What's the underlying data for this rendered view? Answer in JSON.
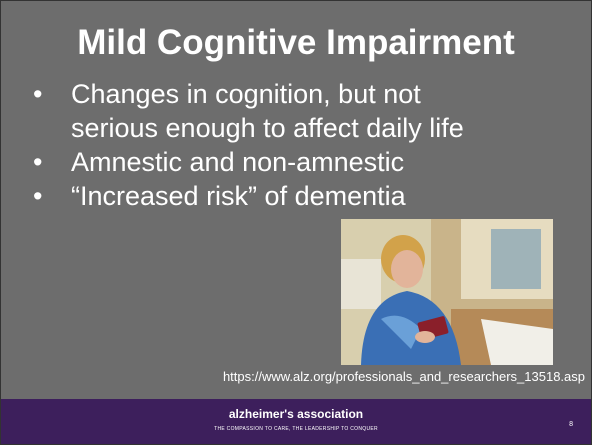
{
  "slide": {
    "title": "Mild Cognitive Impairment",
    "bullets": [
      "Changes in cognition, but not serious enough to affect daily life",
      "Amnestic and non-amnestic",
      "“Increased risk” of dementia"
    ],
    "image_caption": "https://www.alz.org/professionals_and_researchers_13518.asp",
    "footer": {
      "logo": "alzheimer's association",
      "tagline": "THE COMPASSION TO CARE, THE LEADERSHIP TO CONQUER",
      "page_number": "8"
    }
  }
}
